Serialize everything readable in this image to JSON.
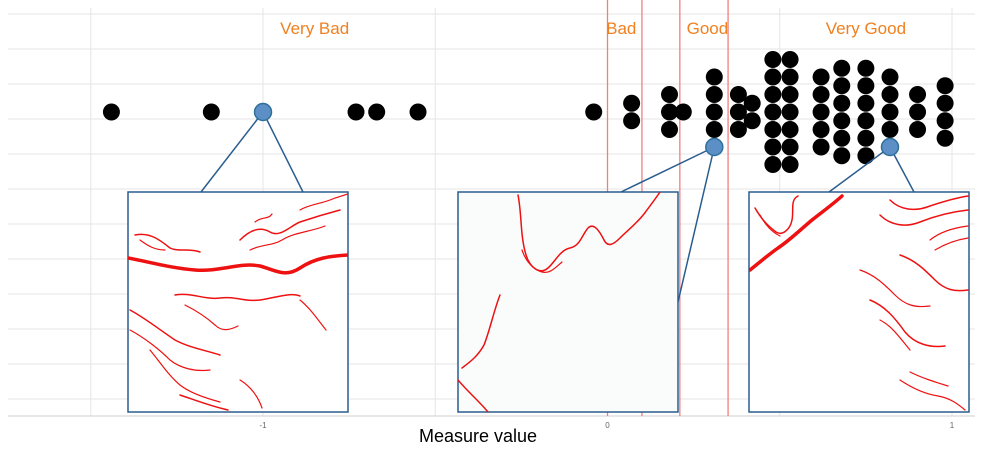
{
  "chart_data": {
    "type": "scatter",
    "subtype": "dot-plot",
    "xlabel": "Measure value",
    "ylabel": "",
    "title": "",
    "xlim": [
      -1.5,
      1.05
    ],
    "x_ticks": [
      {
        "value": -1,
        "label": "-1"
      },
      {
        "value": 0,
        "label": "0"
      },
      {
        "value": 1,
        "label": "1"
      }
    ],
    "grid": true,
    "threshold_lines": [
      0.0,
      0.1,
      0.21,
      0.35
    ],
    "region_labels": [
      {
        "label": "Very Bad",
        "x": -0.85
      },
      {
        "label": "Bad",
        "x": 0.04
      },
      {
        "label": "Good",
        "x": 0.29
      },
      {
        "label": "Very Good",
        "x": 0.75
      }
    ],
    "stacks": [
      {
        "x": -1.44,
        "n": 1
      },
      {
        "x": -1.0,
        "n": 1,
        "highlight_index": 0
      },
      {
        "x": -1.15,
        "n": 1
      },
      {
        "x": -0.73,
        "n": 1
      },
      {
        "x": -0.67,
        "n": 1
      },
      {
        "x": -0.55,
        "n": 1
      },
      {
        "x": -0.04,
        "n": 1
      },
      {
        "x": 0.07,
        "n": 2
      },
      {
        "x": 0.18,
        "n": 3
      },
      {
        "x": 0.22,
        "n": 1
      },
      {
        "x": 0.31,
        "n": 5,
        "highlight_index": 4
      },
      {
        "x": 0.38,
        "n": 3
      },
      {
        "x": 0.42,
        "n": 2
      },
      {
        "x": 0.48,
        "n": 7
      },
      {
        "x": 0.53,
        "n": 7
      },
      {
        "x": 0.62,
        "n": 5
      },
      {
        "x": 0.68,
        "n": 6
      },
      {
        "x": 0.75,
        "n": 6
      },
      {
        "x": 0.82,
        "n": 5,
        "highlight_index": 4
      },
      {
        "x": 0.9,
        "n": 3
      },
      {
        "x": 0.98,
        "n": 4
      }
    ],
    "colors": {
      "dot": "#000000",
      "highlight": "#5b8fc6",
      "highlight_edge": "#2f6f9c",
      "threshold": "#f08080",
      "region_label": "#f08020",
      "inset_border": "#2a5d8f",
      "inset_bg": "#fafcfc",
      "edge_lines": "#ee1111",
      "grid": "#e6e6e6"
    },
    "insets": [
      {
        "name": "inset-very-bad",
        "linked_x": -1.0
      },
      {
        "name": "inset-good",
        "linked_x": 0.31
      },
      {
        "name": "inset-very-good",
        "linked_x": 0.82
      }
    ]
  }
}
